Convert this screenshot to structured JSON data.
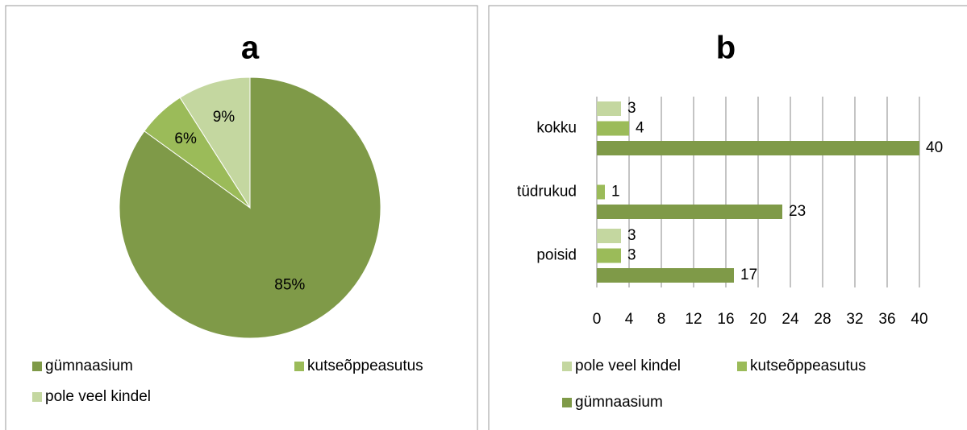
{
  "chart_data": [
    {
      "type": "pie",
      "title": "a",
      "categories": [
        "gümnaasium",
        "kutseõppeasutus",
        "pole veel kindel"
      ],
      "values": [
        85,
        6,
        9
      ],
      "value_labels": [
        "85%",
        "6%",
        "9%"
      ],
      "colors": [
        "#7f9a48",
        "#9bbb59",
        "#c4d7a0"
      ],
      "legend": "bottom"
    },
    {
      "type": "hbar",
      "title": "b",
      "categories": [
        "poisid",
        "tüdrukud",
        "kokku"
      ],
      "series": [
        {
          "name": "gümnaasium",
          "color": "#7f9a48",
          "values": [
            17,
            23,
            40
          ]
        },
        {
          "name": "kutseõppeasutus",
          "color": "#9bbb59",
          "values": [
            3,
            1,
            4
          ]
        },
        {
          "name": "pole veel kindel",
          "color": "#c4d7a0",
          "values": [
            3,
            null,
            3
          ]
        }
      ],
      "xlim": [
        0,
        40
      ],
      "xticks": [
        0,
        4,
        8,
        12,
        16,
        20,
        24,
        28,
        32,
        36,
        40
      ],
      "grid": true,
      "legend": "bottom"
    }
  ]
}
